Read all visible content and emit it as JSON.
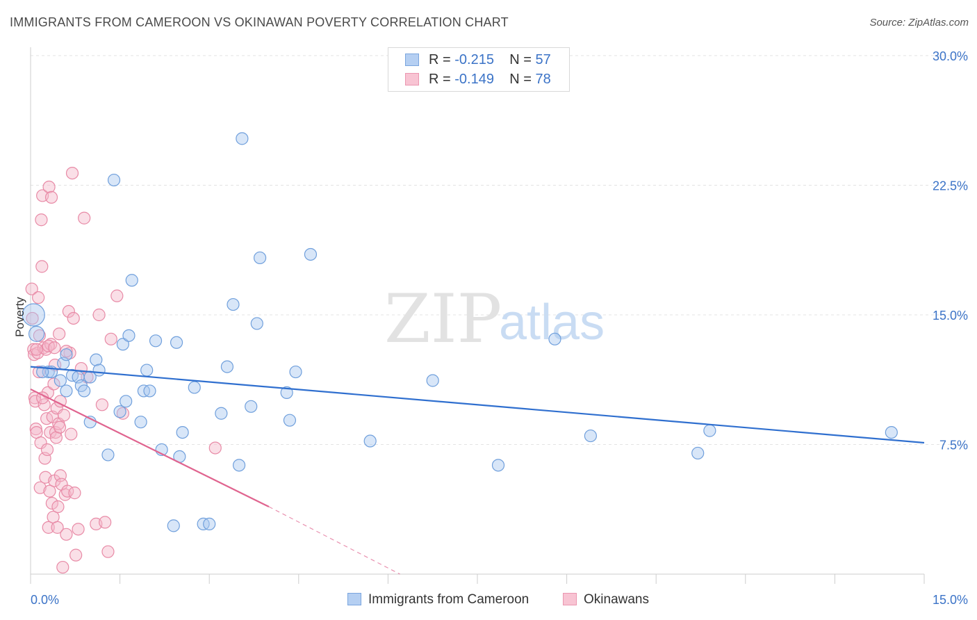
{
  "header": {
    "title": "IMMIGRANTS FROM CAMEROON VS OKINAWAN POVERTY CORRELATION CHART",
    "source": "Source: ZipAtlas.com"
  },
  "watermark": {
    "zip": "ZIP",
    "atlas": "atlas"
  },
  "legend": {
    "rows": [
      {
        "r_label": "R = ",
        "r_value": "-0.215",
        "n_label": "N = ",
        "n_value": "57"
      },
      {
        "r_label": "R = ",
        "r_value": "-0.149",
        "n_label": "N = ",
        "n_value": "78"
      }
    ]
  },
  "bottom_legend": {
    "series1": "Immigrants from Cameroon",
    "series2": "Okinawans"
  },
  "colors": {
    "blue_fill": "#a9c7ef",
    "blue_stroke": "#6f9fdc",
    "blue_line": "#2f6fcf",
    "pink_fill": "#f5b8ca",
    "pink_stroke": "#e88aa6",
    "pink_line": "#e0648f",
    "tick_text": "#3b73c7",
    "grid": "#e3e3e3"
  },
  "chart_data": {
    "type": "scatter",
    "title": "IMMIGRANTS FROM CAMEROON VS OKINAWAN POVERTY CORRELATION CHART",
    "xlabel": "",
    "ylabel": "Poverty",
    "xlim": [
      0,
      15
    ],
    "ylim": [
      0,
      30
    ],
    "x_tick_labels": [
      "0.0%",
      "15.0%"
    ],
    "y_ticks": [
      7.5,
      15,
      22.5,
      30
    ],
    "y_tick_labels": [
      "7.5%",
      "15.0%",
      "22.5%",
      "30.0%"
    ],
    "grid": "horizontal dashed",
    "legend_position": "top-center",
    "series": [
      {
        "name": "Immigrants from Cameroon",
        "r": -0.215,
        "n": 57,
        "trend": {
          "x0": 0,
          "y0": 12.0,
          "x1": 15,
          "y1": 7.6
        },
        "points": [
          [
            0.05,
            15.0
          ],
          [
            0.1,
            13.9
          ],
          [
            0.3,
            11.7
          ],
          [
            0.35,
            11.7
          ],
          [
            0.5,
            11.2
          ],
          [
            0.55,
            12.2
          ],
          [
            0.6,
            12.7
          ],
          [
            0.7,
            11.5
          ],
          [
            0.8,
            11.4
          ],
          [
            0.85,
            10.9
          ],
          [
            0.9,
            10.6
          ],
          [
            1.0,
            8.8
          ],
          [
            1.1,
            12.4
          ],
          [
            1.15,
            11.8
          ],
          [
            1.3,
            6.9
          ],
          [
            1.4,
            22.8
          ],
          [
            1.5,
            9.4
          ],
          [
            1.55,
            13.3
          ],
          [
            1.6,
            10.0
          ],
          [
            1.65,
            13.8
          ],
          [
            1.7,
            17.0
          ],
          [
            1.85,
            8.8
          ],
          [
            1.9,
            10.6
          ],
          [
            1.95,
            11.8
          ],
          [
            2.0,
            10.6
          ],
          [
            2.1,
            13.5
          ],
          [
            2.2,
            7.2
          ],
          [
            2.4,
            2.8
          ],
          [
            2.45,
            13.4
          ],
          [
            2.5,
            6.8
          ],
          [
            2.55,
            8.2
          ],
          [
            2.75,
            10.8
          ],
          [
            2.9,
            2.9
          ],
          [
            3.0,
            2.9
          ],
          [
            3.2,
            9.3
          ],
          [
            3.3,
            12.0
          ],
          [
            3.4,
            15.6
          ],
          [
            3.5,
            6.3
          ],
          [
            3.55,
            25.2
          ],
          [
            3.7,
            9.7
          ],
          [
            3.8,
            14.5
          ],
          [
            3.85,
            18.3
          ],
          [
            4.3,
            10.5
          ],
          [
            4.35,
            8.9
          ],
          [
            4.45,
            11.7
          ],
          [
            4.7,
            18.5
          ],
          [
            5.7,
            7.7
          ],
          [
            6.75,
            11.2
          ],
          [
            7.85,
            6.3
          ],
          [
            8.8,
            13.6
          ],
          [
            9.4,
            8.0
          ],
          [
            11.2,
            7.0
          ],
          [
            11.4,
            8.3
          ],
          [
            14.45,
            8.2
          ],
          [
            0.2,
            11.7
          ],
          [
            0.6,
            10.6
          ],
          [
            1.0,
            11.4
          ]
        ]
      },
      {
        "name": "Okinawans",
        "r": -0.149,
        "n": 78,
        "trend": {
          "x0": 0,
          "y0": 10.7,
          "x1": 4.0,
          "y1": 3.9
        },
        "trend_dashed": {
          "x0": 4.0,
          "y0": 3.9,
          "x1": 6.2,
          "y1": 0.0
        },
        "points": [
          [
            0.02,
            16.5
          ],
          [
            0.03,
            14.8
          ],
          [
            0.05,
            13.0
          ],
          [
            0.06,
            12.7
          ],
          [
            0.07,
            10.2
          ],
          [
            0.08,
            10.0
          ],
          [
            0.09,
            8.4
          ],
          [
            0.1,
            8.2
          ],
          [
            0.12,
            12.8
          ],
          [
            0.13,
            16.0
          ],
          [
            0.14,
            11.7
          ],
          [
            0.15,
            13.8
          ],
          [
            0.16,
            5.0
          ],
          [
            0.17,
            7.6
          ],
          [
            0.18,
            20.5
          ],
          [
            0.19,
            17.8
          ],
          [
            0.2,
            21.9
          ],
          [
            0.22,
            13.1
          ],
          [
            0.23,
            9.8
          ],
          [
            0.24,
            6.7
          ],
          [
            0.25,
            5.6
          ],
          [
            0.26,
            13.0
          ],
          [
            0.27,
            9.0
          ],
          [
            0.28,
            7.2
          ],
          [
            0.29,
            10.5
          ],
          [
            0.3,
            2.7
          ],
          [
            0.31,
            22.4
          ],
          [
            0.32,
            4.8
          ],
          [
            0.33,
            8.2
          ],
          [
            0.34,
            13.3
          ],
          [
            0.35,
            21.8
          ],
          [
            0.36,
            4.1
          ],
          [
            0.37,
            9.1
          ],
          [
            0.38,
            3.3
          ],
          [
            0.39,
            11.0
          ],
          [
            0.4,
            5.4
          ],
          [
            0.41,
            12.1
          ],
          [
            0.42,
            8.2
          ],
          [
            0.43,
            7.9
          ],
          [
            0.44,
            9.6
          ],
          [
            0.45,
            2.7
          ],
          [
            0.46,
            3.9
          ],
          [
            0.47,
            8.7
          ],
          [
            0.48,
            13.9
          ],
          [
            0.49,
            8.5
          ],
          [
            0.5,
            5.7
          ],
          [
            0.52,
            5.2
          ],
          [
            0.54,
            0.4
          ],
          [
            0.56,
            9.2
          ],
          [
            0.58,
            4.6
          ],
          [
            0.6,
            2.3
          ],
          [
            0.62,
            4.8
          ],
          [
            0.64,
            15.2
          ],
          [
            0.66,
            12.8
          ],
          [
            0.68,
            8.1
          ],
          [
            0.7,
            23.2
          ],
          [
            0.72,
            14.8
          ],
          [
            0.74,
            4.7
          ],
          [
            0.76,
            1.1
          ],
          [
            0.8,
            2.6
          ],
          [
            0.85,
            11.9
          ],
          [
            0.9,
            20.6
          ],
          [
            0.95,
            11.4
          ],
          [
            1.1,
            2.9
          ],
          [
            1.15,
            15.0
          ],
          [
            1.2,
            9.8
          ],
          [
            1.25,
            3.0
          ],
          [
            1.3,
            1.3
          ],
          [
            1.35,
            13.6
          ],
          [
            1.45,
            16.1
          ],
          [
            1.55,
            9.3
          ],
          [
            3.1,
            7.3
          ],
          [
            0.1,
            13.0
          ],
          [
            0.2,
            10.2
          ],
          [
            0.3,
            13.2
          ],
          [
            0.4,
            13.1
          ],
          [
            0.5,
            10.0
          ],
          [
            0.6,
            12.9
          ]
        ]
      }
    ]
  }
}
